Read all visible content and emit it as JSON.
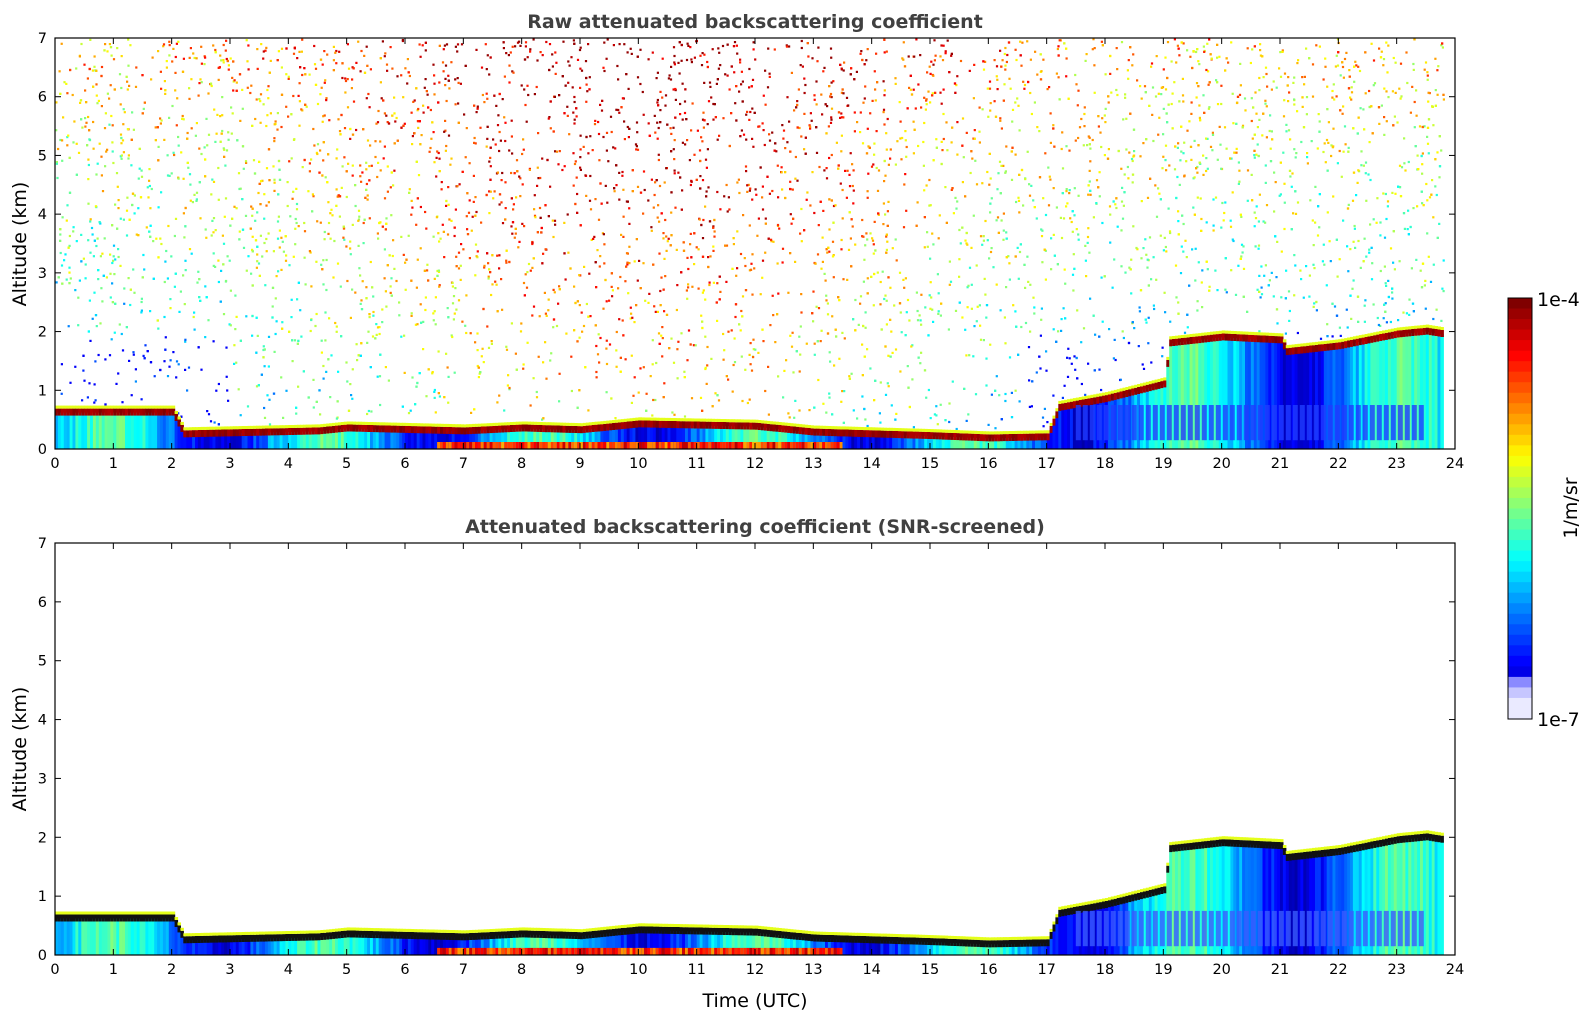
{
  "chart_data": [
    {
      "type": "heatmap",
      "title": "Raw attenuated backscattering coefficient",
      "xlabel": "",
      "ylabel": "Altitude (km)",
      "xlim": [
        0,
        24
      ],
      "ylim": [
        0,
        7
      ],
      "xticks": [
        "0",
        "1",
        "2",
        "3",
        "4",
        "5",
        "6",
        "7",
        "8",
        "9",
        "10",
        "11",
        "12",
        "13",
        "14",
        "15",
        "16",
        "17",
        "18",
        "19",
        "20",
        "21",
        "22",
        "23",
        "24"
      ],
      "yticks": [
        "0",
        "1",
        "2",
        "3",
        "4",
        "5",
        "6",
        "7"
      ],
      "boundary_layer_top_km": [
        [
          0,
          0.62
        ],
        [
          2,
          0.62
        ],
        [
          2.2,
          0.25
        ],
        [
          4.5,
          0.3
        ],
        [
          5,
          0.35
        ],
        [
          7,
          0.3
        ],
        [
          8,
          0.35
        ],
        [
          9,
          0.32
        ],
        [
          10,
          0.42
        ],
        [
          12,
          0.38
        ],
        [
          13,
          0.28
        ],
        [
          15,
          0.22
        ],
        [
          16,
          0.18
        ],
        [
          17,
          0.2
        ],
        [
          17.2,
          0.7
        ],
        [
          18,
          0.85
        ],
        [
          19,
          1.1
        ],
        [
          19.1,
          1.8
        ],
        [
          20,
          1.9
        ],
        [
          21,
          1.85
        ],
        [
          21.1,
          1.65
        ],
        [
          22,
          1.75
        ],
        [
          23,
          1.95
        ],
        [
          23.5,
          2.0
        ],
        [
          23.8,
          1.95
        ]
      ],
      "noise_pattern": "dense noise increasing with altitude, strongest (orange/red) near 5-7 km between 7 and 13 UTC"
    },
    {
      "type": "heatmap",
      "title": "Attenuated backscattering coefficient (SNR-screened)",
      "xlabel": "Time (UTC)",
      "ylabel": "Altitude (km)",
      "xlim": [
        0,
        24
      ],
      "ylim": [
        0,
        7
      ],
      "xticks": [
        "0",
        "1",
        "2",
        "3",
        "4",
        "5",
        "6",
        "7",
        "8",
        "9",
        "10",
        "11",
        "12",
        "13",
        "14",
        "15",
        "16",
        "17",
        "18",
        "19",
        "20",
        "21",
        "22",
        "23",
        "24"
      ],
      "yticks": [
        "0",
        "1",
        "2",
        "3",
        "4",
        "5",
        "6",
        "7"
      ],
      "boundary_layer_top_km": [
        [
          0,
          0.62
        ],
        [
          2,
          0.62
        ],
        [
          2.2,
          0.25
        ],
        [
          4.5,
          0.3
        ],
        [
          5,
          0.35
        ],
        [
          7,
          0.3
        ],
        [
          8,
          0.35
        ],
        [
          9,
          0.32
        ],
        [
          10,
          0.42
        ],
        [
          12,
          0.38
        ],
        [
          13,
          0.28
        ],
        [
          15,
          0.22
        ],
        [
          16,
          0.18
        ],
        [
          17,
          0.2
        ],
        [
          17.2,
          0.7
        ],
        [
          18,
          0.85
        ],
        [
          19,
          1.1
        ],
        [
          19.1,
          1.8
        ],
        [
          20,
          1.9
        ],
        [
          21,
          1.85
        ],
        [
          21.1,
          1.65
        ],
        [
          22,
          1.75
        ],
        [
          23,
          1.95
        ],
        [
          23.5,
          2.0
        ],
        [
          23.8,
          1.95
        ]
      ],
      "noise_pattern": "noise removed above the aerosol layer"
    }
  ],
  "colorbar": {
    "max_label": "1e-4",
    "min_label": "1e-7",
    "unit_label": "1/m/sr",
    "colormap": [
      "#7f0000",
      "#d40000",
      "#ff2a00",
      "#ff8000",
      "#ffd400",
      "#d4ff23",
      "#80ff77",
      "#2affcd",
      "#00d4ff",
      "#0080ff",
      "#0010ff",
      "#3b3bff",
      "#8a8aff",
      "#c6c6ff",
      "#eaeaff"
    ]
  }
}
